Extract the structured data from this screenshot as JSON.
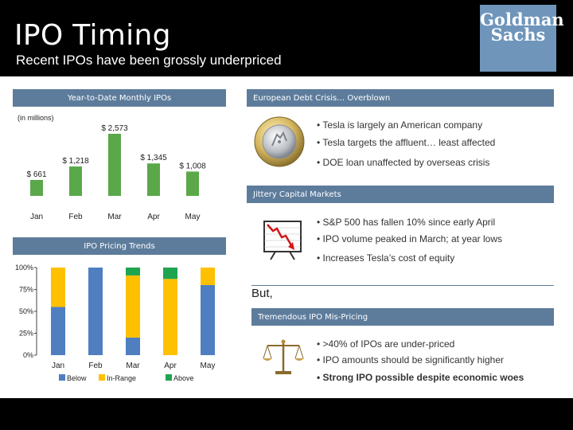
{
  "header": {
    "title": "IPO Timing",
    "subtitle": "Recent IPOs have been grossly underpriced",
    "logo_line1": "Goldman",
    "logo_line2": "Sachs"
  },
  "colors": {
    "header_bg": "#000000",
    "section_header": "#5d7c9c",
    "bar_green": "#5aa84a",
    "below": "#4f7fc1",
    "in_range": "#ffc000",
    "above": "#1fa44f"
  },
  "sections": {
    "ytd_title": "Year-to-Date Monthly IPOs",
    "pricing_title": "IPO Pricing Trends",
    "debt_title": "European Debt Crisis… Overblown",
    "markets_title": "Jittery Capital Markets",
    "mispricing_title": "Tremendous IPO Mis-Pricing"
  },
  "debt_bullets": [
    "Tesla is largely an American company",
    "Tesla targets the affluent… least affected",
    "DOE loan unaffected by overseas crisis"
  ],
  "market_bullets": [
    "S&P 500 has fallen 10% since early April",
    "IPO volume peaked in March; at year lows",
    "Increases Tesla’s cost of equity"
  ],
  "but_text": "But,",
  "mispricing_bullets": [
    ">40% of IPOs are under-priced",
    "IPO amounts should be significantly higher",
    "Strong IPO possible despite economic woes"
  ],
  "icons": {
    "debt": "euro-coin-icon",
    "markets": "falling-chart-icon",
    "mispricing": "scales-icon"
  },
  "chart_data": [
    {
      "type": "bar",
      "title": "Year-to-Date Monthly IPOs",
      "unit_label": "(in millions)",
      "categories": [
        "Jan",
        "Feb",
        "Mar",
        "Apr",
        "May"
      ],
      "values": [
        661,
        1218,
        2573,
        1345,
        1008
      ],
      "data_labels": [
        "$ 661",
        "$ 1,218",
        "$ 2,573",
        "$ 1,345",
        "$ 1,008"
      ],
      "ylim": [
        0,
        2573
      ],
      "grid": false,
      "legend": "none"
    },
    {
      "type": "bar",
      "stacked": true,
      "title": "IPO Pricing Trends",
      "categories": [
        "Jan",
        "Feb",
        "Mar",
        "Apr",
        "May"
      ],
      "series": [
        {
          "name": "Below",
          "values": [
            55,
            100,
            20,
            0,
            80
          ]
        },
        {
          "name": "In-Range",
          "values": [
            45,
            0,
            71,
            87,
            20
          ]
        },
        {
          "name": "Above",
          "values": [
            0,
            0,
            9,
            13,
            0
          ]
        }
      ],
      "ylim": [
        0,
        100
      ],
      "yticks": [
        "0%",
        "25%",
        "50%",
        "75%",
        "100%"
      ],
      "grid": false,
      "legend": "bottom"
    }
  ]
}
